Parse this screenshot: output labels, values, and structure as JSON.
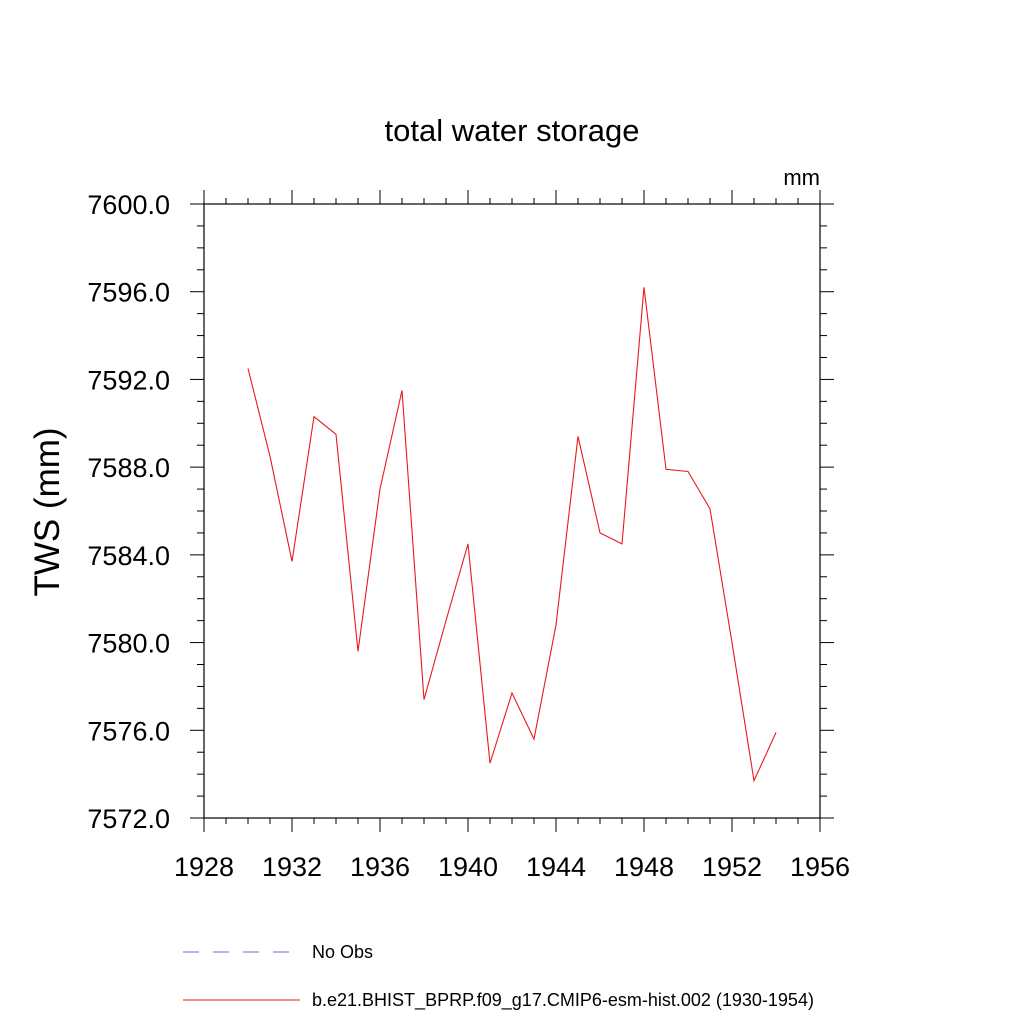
{
  "chart_data": {
    "type": "line",
    "title": "total water storage",
    "units_label": "mm",
    "ylabel": "TWS  (mm)",
    "xlabel": "",
    "xlim": [
      1928,
      1956
    ],
    "ylim": [
      7572.0,
      7600.0
    ],
    "x_ticks": [
      "1928",
      "1932",
      "1936",
      "1940",
      "1944",
      "1948",
      "1952",
      "1956"
    ],
    "y_ticks": [
      "7572.0",
      "7576.0",
      "7580.0",
      "7584.0",
      "7588.0",
      "7592.0",
      "7596.0",
      "7600.0"
    ],
    "series": [
      {
        "name": "b.e21.BHIST_BPRP.f09_g17.CMIP6-esm-hist.002 (1930-1954)",
        "color": "#e8191e",
        "style": "solid",
        "x": [
          1930,
          1931,
          1932,
          1933,
          1934,
          1935,
          1936,
          1937,
          1938,
          1939,
          1940,
          1941,
          1942,
          1943,
          1944,
          1945,
          1946,
          1947,
          1948,
          1949,
          1950,
          1951,
          1952,
          1953,
          1954
        ],
        "y": [
          7592.5,
          7588.5,
          7583.7,
          7590.3,
          7589.5,
          7579.6,
          7587.0,
          7591.5,
          7577.4,
          7581.0,
          7584.5,
          7574.5,
          7577.7,
          7575.6,
          7580.8,
          7589.4,
          7585.0,
          7584.5,
          7596.2,
          7587.9,
          7587.8,
          7586.1,
          7580.0,
          7573.7,
          7575.9
        ]
      }
    ],
    "legend": [
      {
        "label": "No Obs",
        "color": "#6b6bd6",
        "style": "dashed"
      },
      {
        "label": "b.e21.BHIST_BPRP.f09_g17.CMIP6-esm-hist.002 (1930-1954)",
        "color": "#e8191e",
        "style": "solid"
      }
    ],
    "legend_position": "bottom",
    "grid": false
  }
}
